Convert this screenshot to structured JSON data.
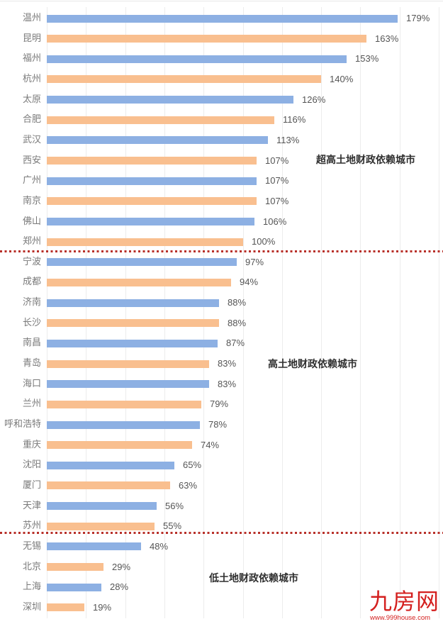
{
  "chart_data": {
    "type": "bar",
    "orientation": "horizontal",
    "title": "",
    "xlabel": "",
    "ylabel": "",
    "xlim": [
      0,
      200
    ],
    "grid": true,
    "gridline_step": 20,
    "legend": null,
    "value_format": "percent",
    "categories": [
      "温州",
      "昆明",
      "福州",
      "杭州",
      "太原",
      "合肥",
      "武汉",
      "西安",
      "广州",
      "南京",
      "佛山",
      "郑州",
      "宁波",
      "成都",
      "济南",
      "长沙",
      "南昌",
      "青岛",
      "海口",
      "兰州",
      "呼和浩特",
      "重庆",
      "沈阳",
      "厦门",
      "天津",
      "苏州",
      "无锡",
      "北京",
      "上海",
      "深圳"
    ],
    "values": [
      179,
      163,
      153,
      140,
      126,
      116,
      113,
      107,
      107,
      107,
      106,
      100,
      97,
      94,
      88,
      88,
      87,
      83,
      83,
      79,
      78,
      74,
      65,
      63,
      56,
      55,
      48,
      29,
      28,
      19
    ],
    "value_labels": [
      "179%",
      "163%",
      "153%",
      "140%",
      "126%",
      "116%",
      "113%",
      "107%",
      "107%",
      "107%",
      "106%",
      "100%",
      "97%",
      "94%",
      "88%",
      "88%",
      "87%",
      "83%",
      "83%",
      "79%",
      "78%",
      "74%",
      "65%",
      "63%",
      "56%",
      "55%",
      "48%",
      "29%",
      "28%",
      "19%"
    ],
    "bar_colors_alternating": [
      "#8db0e3",
      "#f9bf8f"
    ],
    "groups": [
      {
        "label": "超高土地财政依赖城市",
        "from_index": 0,
        "to_index": 11
      },
      {
        "label": "高土地财政依赖城市",
        "from_index": 12,
        "to_index": 25
      },
      {
        "label": "低土地财政依赖城市",
        "from_index": 26,
        "to_index": 29
      }
    ],
    "annotations": [
      "超高土地财政依赖城市",
      "高土地财政依赖城市",
      "低土地财政依赖城市"
    ],
    "divider_color": "#b8302a"
  },
  "groups": {
    "super_high": "超高土地财政依赖城市",
    "high": "高土地财政依赖城市",
    "low": "低土地财政依赖城市"
  },
  "watermark": {
    "logo_text": "九房网",
    "url": "www.999house.com",
    "color": "#d4201f"
  }
}
